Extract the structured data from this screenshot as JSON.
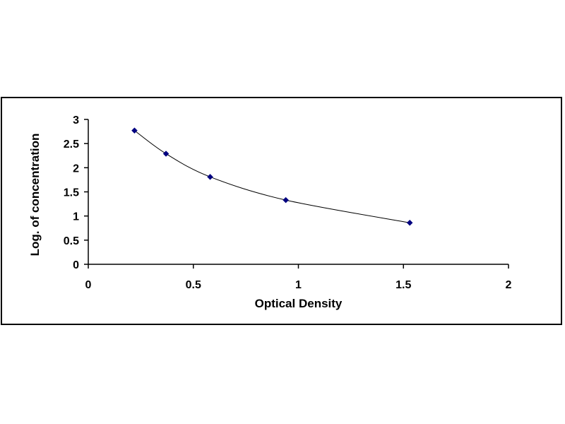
{
  "chart_data": {
    "type": "scatter",
    "title": "",
    "xlabel": "Optical Density",
    "ylabel": "Log. of concentration",
    "xlim": [
      0,
      2
    ],
    "ylim": [
      0,
      3
    ],
    "x_ticks": [
      0,
      0.5,
      1,
      1.5,
      2
    ],
    "y_ticks": [
      0,
      0.5,
      1,
      1.5,
      2,
      2.5,
      3
    ],
    "x_tick_labels": [
      "0",
      "0.5",
      "1",
      "1.5",
      "2"
    ],
    "y_tick_labels": [
      "0",
      "0.5",
      "1",
      "1.5",
      "2",
      "2.5",
      "3"
    ],
    "grid": false,
    "legend": "none",
    "marker": "diamond",
    "fit_line": "smooth curve",
    "series": [
      {
        "x": [
          0.22,
          0.37,
          0.58,
          0.94,
          1.53
        ],
        "y": [
          2.77,
          2.29,
          1.81,
          1.33,
          0.86
        ]
      }
    ],
    "colors": {
      "marker": "#000080",
      "line": "#000000",
      "axis": "#000000"
    }
  }
}
